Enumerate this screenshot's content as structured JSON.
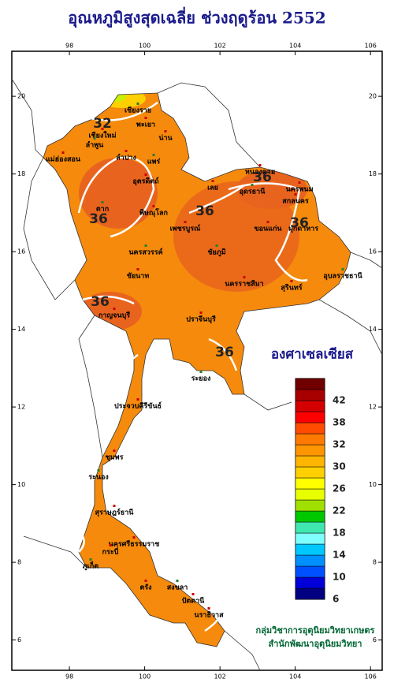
{
  "title": "อุณหภูมิสูงสุดเฉลี่ย ช่วงฤดูร้อน 2552",
  "map": {
    "lonlim": [
      96.47,
      106.31
    ],
    "latlim": [
      5.22,
      21.16
    ],
    "lon_ticks": [
      98,
      100,
      102,
      104,
      106
    ],
    "lat_ticks": [
      20,
      18,
      16,
      14,
      12,
      10,
      8,
      6
    ],
    "contour_labels": [
      "32",
      "36",
      "36",
      "36",
      "36",
      "36",
      "36"
    ],
    "places": [
      "เชียงราย",
      "แม่ฮ่องสอน",
      "เชียงใหม่",
      "ลำพูน",
      "พะเยา",
      "น่าน",
      "แพร่",
      "ลำปาง",
      "อุตรดิตถ์",
      "ตาก",
      "พิษณุโลก",
      "เพชรบูรณ์",
      "นครสวรรค์",
      "ชัยนาท",
      "หนองคาย",
      "อุดรธานี",
      "สกลนคร",
      "นครพนม",
      "มุกดาหาร",
      "เลย",
      "ขอนแก่น",
      "ชัยภูมิ",
      "นครราชสีมา",
      "สุรินทร์",
      "อุบลราชธานี",
      "กาญจนบุรี",
      "ปราจีนบุรี",
      "ระยอง",
      "ประจวบคีรีขันธ์",
      "ชุมพร",
      "ระนอง",
      "สุราษฎร์ธานี",
      "นครศรีธรรมราช",
      "ภูเก็ต",
      "กระบี่",
      "ตรัง",
      "สงขลา",
      "ปัตตานี",
      "นราธิวาส"
    ]
  },
  "legend": {
    "unit": "องศาเซลเซียส",
    "colors": [
      "#000080",
      "#0000d8",
      "#0050ff",
      "#0090ff",
      "#00c8ff",
      "#80ffff",
      "#40e8b0",
      "#00c800",
      "#a0e000",
      "#e8ff00",
      "#ffff00",
      "#ffd000",
      "#ffb400",
      "#ff9600",
      "#ff7a00",
      "#ff4c00",
      "#ff0000",
      "#d40000",
      "#a80000",
      "#700000"
    ],
    "labels": [
      6,
      10,
      14,
      18,
      22,
      26,
      30,
      32,
      38,
      42
    ]
  },
  "credits": [
    "กลุ่มวิชาการอุตุนิยมวิทยาเกษตร",
    "สำนักพัฒนาอุตุนิยมวิทยา"
  ]
}
